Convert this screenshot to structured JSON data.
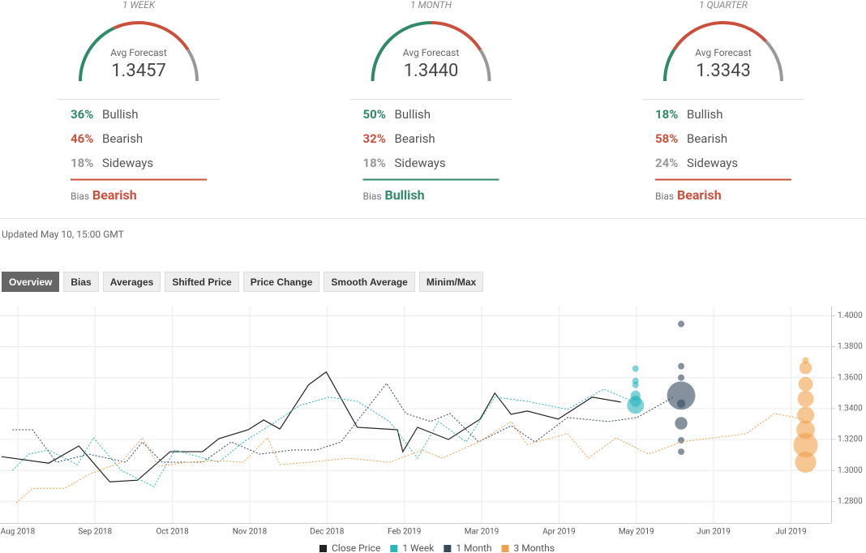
{
  "forecast": [
    {
      "period": "1 WEEK",
      "avg_label": "Avg Forecast",
      "avg": "1.3457",
      "rows": [
        {
          "value": 36,
          "value_label": "36%",
          "label": "Bullish"
        },
        {
          "value": 46,
          "value_label": "46%",
          "label": "Bearish"
        },
        {
          "value": 18,
          "value_label": "18%",
          "label": "Sideways"
        }
      ],
      "bias_label": "Bias",
      "bias": "Bearish"
    },
    {
      "period": "1 MONTH",
      "avg_label": "Avg Forecast",
      "avg": "1.3440",
      "rows": [
        {
          "value": 50,
          "value_label": "50%",
          "label": "Bullish"
        },
        {
          "value": 32,
          "value_label": "32%",
          "label": "Bearish"
        },
        {
          "value": 18,
          "value_label": "18%",
          "label": "Sideways"
        }
      ],
      "bias_label": "Bias",
      "bias": "Bullish"
    },
    {
      "period": "1 QUARTER",
      "avg_label": "Avg Forecast",
      "avg": "1.3343",
      "rows": [
        {
          "value": 18,
          "value_label": "18%",
          "label": "Bullish"
        },
        {
          "value": 58,
          "value_label": "58%",
          "label": "Bearish"
        },
        {
          "value": 24,
          "value_label": "24%",
          "label": "Sideways"
        }
      ],
      "bias_label": "Bias",
      "bias": "Bearish"
    }
  ],
  "updated": "Updated May 10, 15:00 GMT",
  "tabs": [
    "Overview",
    "Bias",
    "Averages",
    "Shifted Price",
    "Price Change",
    "Smooth Average",
    "Minim/Max"
  ],
  "chart_data": {
    "type": "line",
    "xlim": [
      -0.23,
      10.52
    ],
    "xticks": [
      {
        "value": 0,
        "label": "Aug 2018"
      },
      {
        "value": 1,
        "label": "Sep 2018"
      },
      {
        "value": 2,
        "label": "Oct 2018"
      },
      {
        "value": 3,
        "label": "Nov 2018"
      },
      {
        "value": 4,
        "label": "Dec 2018"
      },
      {
        "value": 5,
        "label": "Feb 2019"
      },
      {
        "value": 6,
        "label": "Mar 2019"
      },
      {
        "value": 7,
        "label": "Apr 2019"
      },
      {
        "value": 8,
        "label": "May 2019"
      },
      {
        "value": 9,
        "label": "Jun 2019"
      },
      {
        "value": 10,
        "label": "Jul 2019"
      }
    ],
    "ylim": [
      1.266,
      1.406
    ],
    "yticks": [
      {
        "value": 1.28,
        "label": "1.2800"
      },
      {
        "value": 1.3,
        "label": "1.3000"
      },
      {
        "value": 1.32,
        "label": "1.3200"
      },
      {
        "value": 1.34,
        "label": "1.3400"
      },
      {
        "value": 1.36,
        "label": "1.3600"
      },
      {
        "value": 1.38,
        "label": "1.3800"
      },
      {
        "value": 1.4,
        "label": "1.4000"
      }
    ],
    "grid": true,
    "series": [
      {
        "name": "Close Price",
        "color": "#222222",
        "dashed": false,
        "x": [
          -0.21,
          0.4,
          0.79,
          1.19,
          1.55,
          1.97,
          2.39,
          2.6,
          2.98,
          3.18,
          3.39,
          3.76,
          3.99,
          4.39,
          4.91,
          4.98,
          5.17,
          5.57,
          5.98,
          6.17,
          6.38,
          6.59,
          6.99,
          7.43,
          7.8
        ],
        "values": [
          1.3089,
          1.3047,
          1.3158,
          1.2926,
          1.2937,
          1.3121,
          1.3121,
          1.3205,
          1.3263,
          1.3326,
          1.3268,
          1.3553,
          1.3637,
          1.3279,
          1.3263,
          1.3121,
          1.3279,
          1.32,
          1.3332,
          1.35,
          1.3363,
          1.3384,
          1.3332,
          1.3474,
          1.3442
        ]
      },
      {
        "name": "1 Week",
        "color": "#2bb5bd",
        "dashed": true,
        "x": [
          -0.07,
          0.14,
          0.4,
          0.77,
          0.98,
          1.34,
          1.76,
          2.03,
          2.6,
          2.92,
          3.34,
          3.65,
          4.03,
          4.39,
          4.81,
          5.17,
          5.44,
          5.8,
          6.17,
          6.59,
          7.11,
          7.58,
          7.95
        ],
        "values": [
          1.3,
          1.3105,
          1.3132,
          1.3037,
          1.3211,
          1.3,
          1.2895,
          1.3132,
          1.3053,
          1.3184,
          1.3316,
          1.3421,
          1.3474,
          1.3447,
          1.3316,
          1.3079,
          1.3316,
          1.3184,
          1.3474,
          1.3447,
          1.3395,
          1.3526,
          1.3447
        ],
        "bubbles": {
          "x": 7.99,
          "values": [
            1.3658,
            1.3579,
            1.3553,
            1.3484,
            1.3447,
            1.3421
          ],
          "sizes": [
            1,
            1,
            1,
            3,
            4,
            10
          ]
        }
      },
      {
        "name": "1 Month",
        "color": "#34495e",
        "dashed": true,
        "x": [
          -0.07,
          0.19,
          0.5,
          0.92,
          1.4,
          1.61,
          1.87,
          2.39,
          2.76,
          3.13,
          3.55,
          3.86,
          4.18,
          4.77,
          5.02,
          5.34,
          5.59,
          5.96,
          6.38,
          6.69,
          7.11,
          7.64,
          8.01,
          8.48
        ],
        "values": [
          1.3263,
          1.3263,
          1.3053,
          1.3105,
          1.3053,
          1.3184,
          1.3053,
          1.3053,
          1.3184,
          1.3105,
          1.3132,
          1.3132,
          1.3184,
          1.3563,
          1.3368,
          1.3316,
          1.3368,
          1.3184,
          1.3289,
          1.3184,
          1.3342,
          1.3316,
          1.3342,
          1.3474
        ],
        "bubbles": {
          "x": 8.58,
          "values": [
            1.3947,
            1.3674,
            1.36,
            1.3484,
            1.3432,
            1.3305,
            1.3195,
            1.3121
          ],
          "sizes": [
            1,
            1,
            1,
            30,
            2,
            5,
            1,
            1
          ]
        }
      },
      {
        "name": "3 Months",
        "color": "#f0a04b",
        "dashed": true,
        "x": [
          -0.02,
          0.19,
          0.61,
          0.92,
          1.34,
          1.61,
          1.82,
          2.18,
          2.6,
          2.92,
          3.23,
          3.39,
          3.76,
          4.28,
          4.81,
          5.23,
          5.49,
          5.96,
          6.38,
          6.59,
          7.11,
          7.38,
          7.74,
          8.16,
          8.58,
          9.0,
          9.42,
          9.79,
          10.16
        ],
        "values": [
          1.2789,
          1.2884,
          1.2884,
          1.2974,
          1.3053,
          1.3211,
          1.3026,
          1.3053,
          1.3063,
          1.3053,
          1.3211,
          1.3037,
          1.3053,
          1.3079,
          1.3053,
          1.3132,
          1.3079,
          1.3184,
          1.3316,
          1.3168,
          1.3237,
          1.3079,
          1.3211,
          1.3105,
          1.3184,
          1.3211,
          1.3237,
          1.3368,
          1.3332
        ],
        "bubbles": {
          "x": 10.19,
          "values": [
            1.3711,
            1.3663,
            1.3558,
            1.3463,
            1.3358,
            1.3263,
            1.3163,
            1.3053
          ],
          "sizes": [
            1,
            5,
            7,
            9,
            10,
            12,
            22,
            16
          ]
        }
      }
    ]
  }
}
